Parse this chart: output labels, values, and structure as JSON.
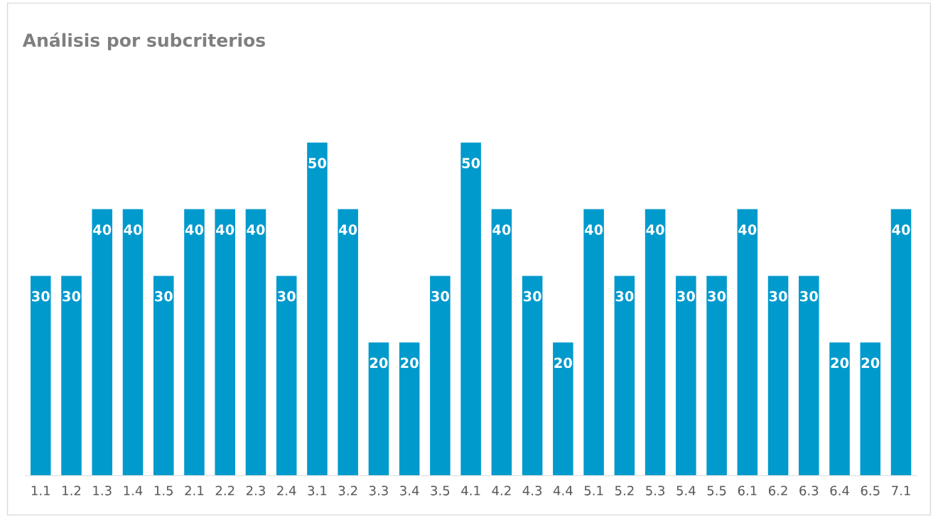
{
  "chart_data": {
    "type": "bar",
    "title": "Análisis por subcriterios",
    "categories": [
      "1.1",
      "1.2",
      "1.3",
      "1.4",
      "1.5",
      "2.1",
      "2.2",
      "2.3",
      "2.4",
      "3.1",
      "3.2",
      "3.3",
      "3.4",
      "3.5",
      "4.1",
      "4.2",
      "4.3",
      "4.4",
      "5.1",
      "5.2",
      "5.3",
      "5.4",
      "5.5",
      "6.1",
      "6.2",
      "6.3",
      "6.4",
      "6.5",
      "7.1"
    ],
    "values": [
      30,
      30,
      40,
      40,
      30,
      40,
      40,
      40,
      30,
      50,
      40,
      20,
      20,
      30,
      50,
      40,
      30,
      20,
      40,
      30,
      40,
      30,
      30,
      40,
      30,
      30,
      20,
      20,
      40
    ],
    "color": "#009acd",
    "data_labels": true
  }
}
